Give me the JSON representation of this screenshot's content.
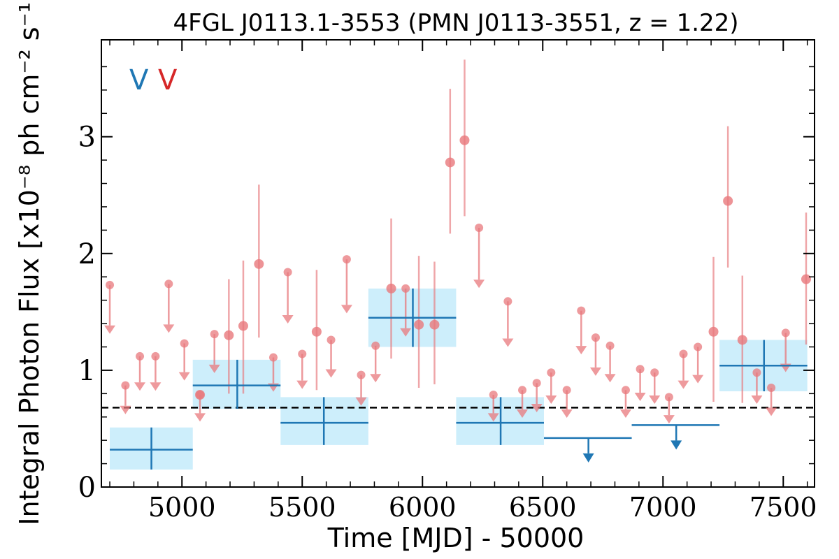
{
  "chart_data": {
    "type": "scatter",
    "title": "4FGL J0113.1-3553 (PMN J0113-3551, z = 1.22)",
    "xlabel": "Time [MJD] - 50000",
    "ylabel": "Integral Photon Flux [x10⁻⁸ ph cm⁻² s⁻¹]",
    "xlim": [
      4665,
      7630
    ],
    "ylim": [
      0,
      3.83
    ],
    "x_ticks": [
      "5000",
      "5500",
      "6000",
      "6500",
      "7000",
      "7500"
    ],
    "y_ticks": [
      "0",
      "1",
      "2",
      "3"
    ],
    "reference_level": 0.68,
    "legend": [
      {
        "label": "V",
        "color": "#1f77b4"
      },
      {
        "label": "V",
        "color": "#d62728"
      }
    ],
    "series": [
      {
        "name": "",
        "color": "#1f77b4",
        "bin_color": "#cdeefb",
        "detections": [
          {
            "x0": 4700,
            "x1": 5045,
            "x": 4873,
            "y": 0.32,
            "ylo": 0.15,
            "yhi": 0.51
          },
          {
            "x0": 5045,
            "x1": 5410,
            "x": 5230,
            "y": 0.87,
            "ylo": 0.67,
            "yhi": 1.09
          },
          {
            "x0": 5410,
            "x1": 5775,
            "x": 5590,
            "y": 0.55,
            "ylo": 0.36,
            "yhi": 0.77
          },
          {
            "x0": 5775,
            "x1": 6140,
            "x": 5960,
            "y": 1.45,
            "ylo": 1.2,
            "yhi": 1.7
          },
          {
            "x0": 6140,
            "x1": 6505,
            "x": 6325,
            "y": 0.55,
            "ylo": 0.36,
            "yhi": 0.77
          },
          {
            "x0": 7235,
            "x1": 7600,
            "x": 7420,
            "y": 1.04,
            "ylo": 0.82,
            "yhi": 1.26
          }
        ],
        "upper_limits": [
          {
            "x0": 6505,
            "x1": 6870,
            "x": 6690,
            "y": 0.42
          },
          {
            "x0": 6870,
            "x1": 7235,
            "x": 7055,
            "y": 0.53
          }
        ]
      },
      {
        "name": "",
        "color": "#e8787c",
        "detections": [
          {
            "x": 5075,
            "y": 0.79
          },
          {
            "x": 5195,
            "y": 1.3,
            "ylo": 0.8,
            "yhi": 1.78
          },
          {
            "x": 5255,
            "y": 1.38,
            "ylo": 0.8,
            "yhi": 1.94
          },
          {
            "x": 5320,
            "y": 1.91,
            "ylo": 1.28,
            "yhi": 2.59
          },
          {
            "x": 5560,
            "y": 1.33,
            "ylo": 0.83,
            "yhi": 1.86
          },
          {
            "x": 5870,
            "y": 1.7,
            "ylo": 1.1,
            "yhi": 2.3
          },
          {
            "x": 5985,
            "y": 1.39,
            "ylo": 0.85,
            "yhi": 1.98
          },
          {
            "x": 6050,
            "y": 1.39,
            "ylo": 0.88,
            "yhi": 1.93
          },
          {
            "x": 6115,
            "y": 2.78,
            "ylo": 2.17,
            "yhi": 3.41
          },
          {
            "x": 6175,
            "y": 2.97,
            "ylo": 2.32,
            "yhi": 3.66
          },
          {
            "x": 7210,
            "y": 1.33,
            "ylo": 0.73,
            "yhi": 1.97
          },
          {
            "x": 7270,
            "y": 2.45,
            "ylo": 1.88,
            "yhi": 3.09
          },
          {
            "x": 7330,
            "y": 1.26,
            "ylo": 0.72,
            "yhi": 1.81
          },
          {
            "x": 7595,
            "y": 1.78,
            "ylo": 1.22,
            "yhi": 2.35
          }
        ],
        "upper_limits": [
          {
            "x": 4700,
            "y": 1.73
          },
          {
            "x": 4765,
            "y": 0.87
          },
          {
            "x": 4825,
            "y": 1.12
          },
          {
            "x": 4890,
            "y": 1.12
          },
          {
            "x": 4945,
            "y": 1.74
          },
          {
            "x": 5010,
            "y": 1.23
          },
          {
            "x": 5075,
            "y": 0.79
          },
          {
            "x": 5135,
            "y": 1.31
          },
          {
            "x": 5380,
            "y": 1.11
          },
          {
            "x": 5440,
            "y": 1.84
          },
          {
            "x": 5500,
            "y": 1.14
          },
          {
            "x": 5620,
            "y": 1.26
          },
          {
            "x": 5685,
            "y": 1.95
          },
          {
            "x": 5745,
            "y": 0.96
          },
          {
            "x": 5805,
            "y": 1.21
          },
          {
            "x": 5930,
            "y": 1.7
          },
          {
            "x": 6235,
            "y": 2.22
          },
          {
            "x": 6295,
            "y": 0.79
          },
          {
            "x": 6355,
            "y": 1.59
          },
          {
            "x": 6415,
            "y": 0.83
          },
          {
            "x": 6475,
            "y": 0.89
          },
          {
            "x": 6535,
            "y": 0.98
          },
          {
            "x": 6600,
            "y": 0.83
          },
          {
            "x": 6660,
            "y": 1.51
          },
          {
            "x": 6720,
            "y": 1.28
          },
          {
            "x": 6780,
            "y": 1.21
          },
          {
            "x": 6845,
            "y": 0.83
          },
          {
            "x": 6905,
            "y": 1.01
          },
          {
            "x": 6965,
            "y": 0.98
          },
          {
            "x": 7025,
            "y": 0.77
          },
          {
            "x": 7085,
            "y": 1.14
          },
          {
            "x": 7145,
            "y": 1.2
          },
          {
            "x": 7390,
            "y": 0.98
          },
          {
            "x": 7450,
            "y": 0.85
          },
          {
            "x": 7510,
            "y": 1.32
          }
        ]
      }
    ]
  }
}
